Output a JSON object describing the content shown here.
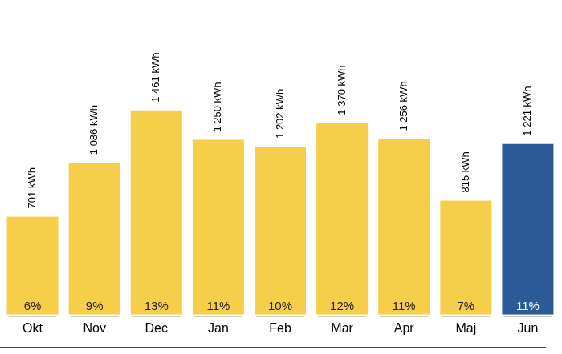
{
  "chart_data": {
    "type": "bar",
    "categories": [
      "Okt",
      "Nov",
      "Dec",
      "Jan",
      "Feb",
      "Mar",
      "Apr",
      "Maj",
      "Jun"
    ],
    "values": [
      701,
      1086,
      1461,
      1250,
      1202,
      1370,
      1256,
      815,
      1221
    ],
    "value_labels": [
      "701 kWh",
      "1 086 kWh",
      "1 461 kWh",
      "1 250 kWh",
      "1 202 kWh",
      "1 370 kWh",
      "1 256 kWh",
      "815 kWh",
      "1 221 kWh"
    ],
    "share_labels": [
      "6%",
      "9%",
      "13%",
      "11%",
      "10%",
      "12%",
      "11%",
      "7%",
      "11%"
    ],
    "colors": [
      "#f6cf4a",
      "#f6cf4a",
      "#f6cf4a",
      "#f6cf4a",
      "#f6cf4a",
      "#f6cf4a",
      "#f6cf4a",
      "#f6cf4a",
      "#2c5a97"
    ],
    "ylim": [
      0,
      2250
    ],
    "grid": false,
    "data_labels": true,
    "tick_labels": "x"
  }
}
